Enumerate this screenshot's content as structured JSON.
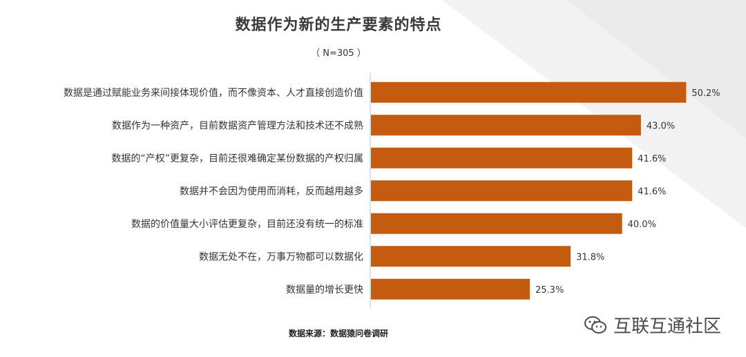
{
  "header": {
    "title": "数据作为新的生产要素的特点",
    "subtitle": "（ N=305 ）"
  },
  "footer": {
    "source": "数据来源：数据猿问卷调研"
  },
  "watermark": {
    "text": "互联互通社区",
    "icon": "wechat-icon"
  },
  "colors": {
    "bar": "#c55a11",
    "axis": "#bfbfbf",
    "background_shape": "#f2f2f2"
  },
  "chart_data": {
    "type": "bar",
    "orientation": "horizontal",
    "categories": [
      "数据是通过赋能业务来间接体现价值，而不像资本、人才直接创造价值",
      "数据作为一种资产，目前数据资产管理方法和技术还不成熟",
      "数据的“产权”更复杂，目前还很难确定某份数据的产权归属",
      "数据并不会因为使用而消耗，反而越用越多",
      "数据的价值量大小评估更复杂，目前还没有统一的标准",
      "数据无处不在，万事万物都可以数据化",
      "数据量的增长更快"
    ],
    "values": [
      50.2,
      43.0,
      41.6,
      41.6,
      40.0,
      31.8,
      25.3
    ],
    "labels": [
      "50.2%",
      "43.0%",
      "41.6%",
      "41.6%",
      "40.0%",
      "31.8%",
      "25.3%"
    ],
    "unit": "%",
    "xlim": [
      0,
      55
    ],
    "grid": false,
    "legend": "none"
  }
}
